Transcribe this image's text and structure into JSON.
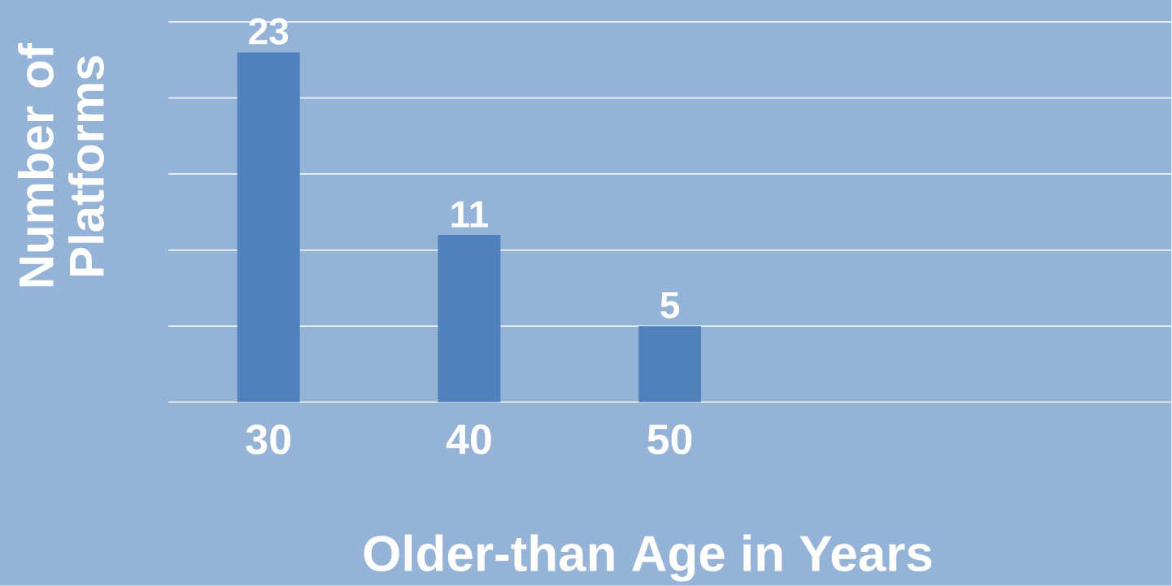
{
  "chart_data": {
    "type": "bar",
    "xlabel": "Older-than Age in Years",
    "ylabel": "Number of Platforms",
    "categories": [
      "30",
      "40",
      "50",
      null,
      null
    ],
    "values": [
      23,
      11,
      5,
      null,
      null
    ],
    "color": "#4f81bd",
    "ylim": [
      0,
      25
    ],
    "yticks": [
      {
        "value": 0,
        "label": null
      },
      {
        "value": 5,
        "label": null
      },
      {
        "value": 10,
        "label": null
      },
      {
        "value": 15,
        "label": null
      },
      {
        "value": 20,
        "label": null
      },
      {
        "value": 25,
        "label": null
      }
    ],
    "grid": "y",
    "data_labels": true,
    "tick_labels": "x"
  }
}
